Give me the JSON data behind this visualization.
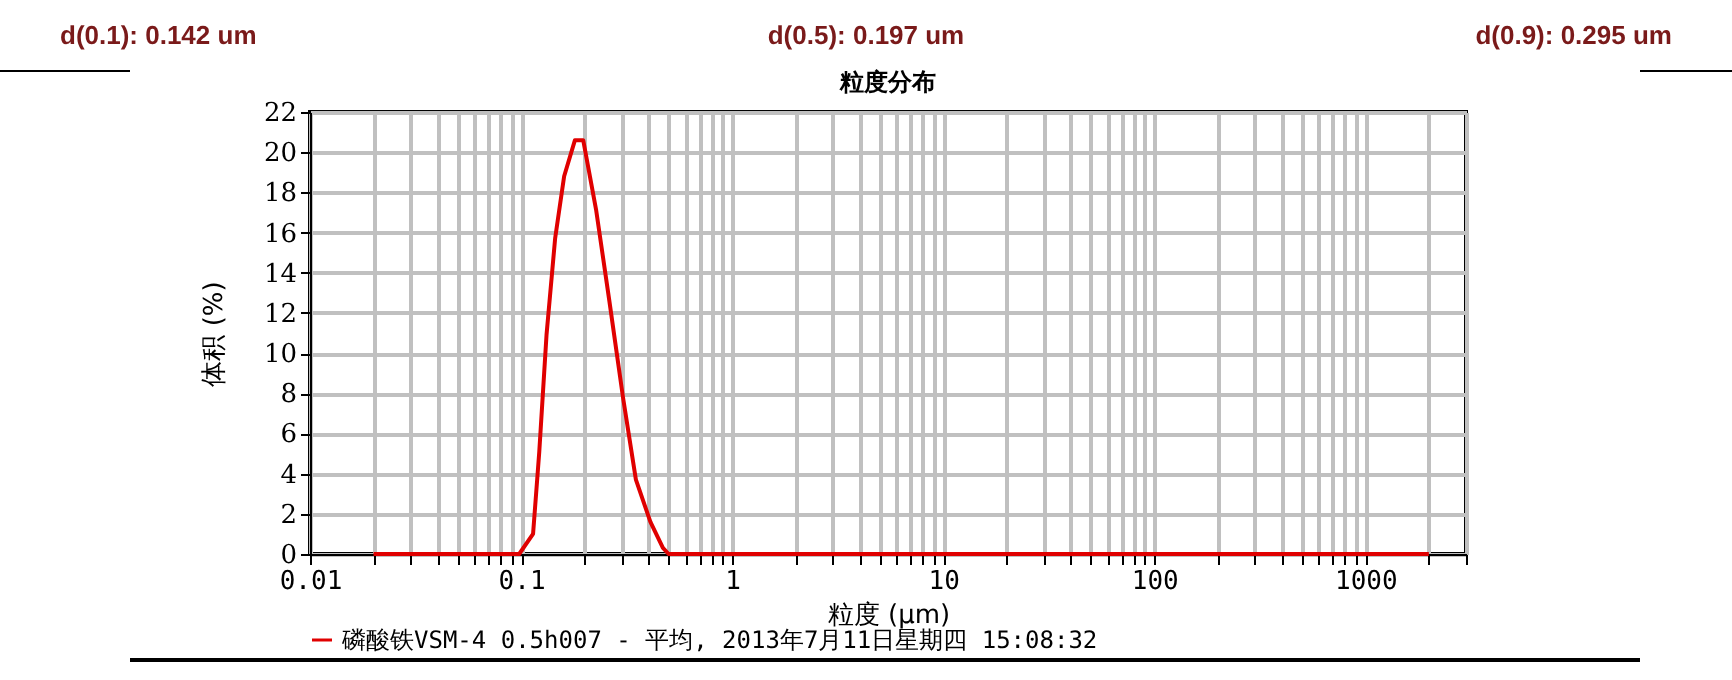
{
  "chart_data": {
    "type": "line",
    "title": "粒度分布",
    "xlabel": "粒度 (μm)",
    "ylabel": "体积 (%)",
    "annotations": [
      "d(0.1): 0.142 um",
      "d(0.5): 0.197 um",
      "d(0.9): 0.295 um"
    ],
    "series": [
      {
        "name": "磷酸铁VSM-4 0.5h007 - 平均, 2013年7月11日星期四 15:08:32",
        "color": "#e00000",
        "x": [
          0.02,
          0.05,
          0.09,
          0.098,
          0.114,
          0.122,
          0.132,
          0.145,
          0.16,
          0.18,
          0.197,
          0.227,
          0.262,
          0.304,
          0.35,
          0.41,
          0.47,
          0.5,
          1,
          10,
          100,
          1000,
          2000
        ],
        "values": [
          0,
          0,
          0,
          0,
          1.0,
          5.1,
          10.9,
          15.7,
          18.8,
          20.6,
          20.6,
          17.1,
          12.6,
          7.8,
          3.7,
          1.6,
          0.3,
          0,
          0,
          0,
          0,
          0,
          0
        ]
      }
    ],
    "log": "x",
    "xlim": [
      0.01,
      3000
    ],
    "ylim": [
      0,
      22
    ],
    "xticks": [
      0.01,
      {
        "value": 0.02,
        "label": null
      },
      {
        "value": 0.03,
        "label": null
      },
      {
        "value": 0.04,
        "label": null
      },
      {
        "value": 0.05,
        "label": null
      },
      {
        "value": 0.06,
        "label": null
      },
      {
        "value": 0.07,
        "label": null
      },
      {
        "value": 0.08,
        "label": null
      },
      {
        "value": 0.09,
        "label": null
      },
      0.1,
      {
        "value": 0.2,
        "label": null
      },
      {
        "value": 0.3,
        "label": null
      },
      {
        "value": 0.4,
        "label": null
      },
      {
        "value": 0.5,
        "label": null
      },
      {
        "value": 0.6,
        "label": null
      },
      {
        "value": 0.7,
        "label": null
      },
      {
        "value": 0.8,
        "label": null
      },
      {
        "value": 0.9,
        "label": null
      },
      1,
      {
        "value": 2,
        "label": null
      },
      {
        "value": 3,
        "label": null
      },
      {
        "value": 4,
        "label": null
      },
      {
        "value": 5,
        "label": null
      },
      {
        "value": 6,
        "label": null
      },
      {
        "value": 7,
        "label": null
      },
      {
        "value": 8,
        "label": null
      },
      {
        "value": 9,
        "label": null
      },
      10,
      {
        "value": 20,
        "label": null
      },
      {
        "value": 30,
        "label": null
      },
      {
        "value": 40,
        "label": null
      },
      {
        "value": 50,
        "label": null
      },
      {
        "value": 60,
        "label": null
      },
      {
        "value": 70,
        "label": null
      },
      {
        "value": 80,
        "label": null
      },
      {
        "value": 90,
        "label": null
      },
      100,
      {
        "value": 200,
        "label": null
      },
      {
        "value": 300,
        "label": null
      },
      {
        "value": 400,
        "label": null
      },
      {
        "value": 500,
        "label": null
      },
      {
        "value": 600,
        "label": null
      },
      {
        "value": 700,
        "label": null
      },
      {
        "value": 800,
        "label": null
      },
      {
        "value": 900,
        "label": null
      },
      1000,
      {
        "value": 2000,
        "label": null
      },
      {
        "value": 3000,
        "label": null
      }
    ],
    "yticks": [
      0,
      2,
      4,
      6,
      8,
      10,
      12,
      14,
      16,
      18,
      20,
      22
    ],
    "grid": true,
    "legend": "bottom",
    "marker": "none",
    "line_style": "solid"
  }
}
